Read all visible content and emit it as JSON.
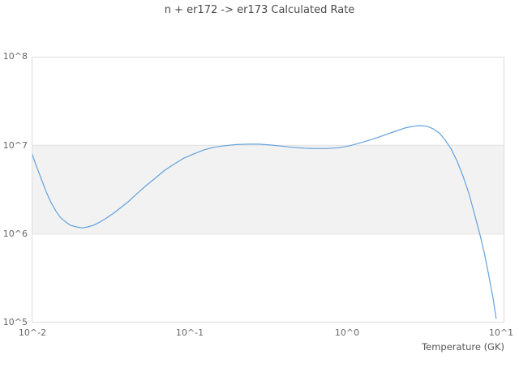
{
  "chart": {
    "title": "n + er172 -> er173 Calculated Rate",
    "x_axis_title": "Temperature (GK)",
    "y_ticks": [
      "10^8",
      "10^7",
      "10^6",
      "10^5"
    ],
    "x_ticks": [
      "10^-2",
      "10^-1",
      "10^0",
      "10^1"
    ]
  },
  "colors": {
    "line": "#64a2dc",
    "band": "#f2f2f2",
    "band_edge": "#e2e2e2",
    "border": "#dcdcdc",
    "tick_text": "#666666",
    "title_text": "#4a4a4a"
  },
  "chart_data": {
    "type": "line",
    "title": "n + er172 -> er173 Calculated Rate",
    "xlabel": "Temperature (GK)",
    "ylabel": "",
    "x_scale": "log",
    "y_scale": "log",
    "xlim": [
      0.01,
      10
    ],
    "ylim": [
      100000.0,
      100000000.0
    ],
    "x_tick_labels": [
      "10^-2",
      "10^-1",
      "10^0",
      "10^1"
    ],
    "y_tick_labels": [
      "10^5",
      "10^6",
      "10^7",
      "10^8"
    ],
    "legend": "none",
    "grid": "shaded horizontal band between 1e6 and 1e7",
    "series": [
      {
        "name": "calculated rate",
        "points": [
          [
            0.01,
            8300000.0
          ],
          [
            0.0107,
            5900000.0
          ],
          [
            0.0115,
            4200000.0
          ],
          [
            0.0124,
            2950000.0
          ],
          [
            0.0133,
            2250000.0
          ],
          [
            0.0143,
            1800000.0
          ],
          [
            0.0153,
            1520000.0
          ],
          [
            0.0165,
            1360000.0
          ],
          [
            0.0177,
            1250000.0
          ],
          [
            0.0192,
            1200000.0
          ],
          [
            0.0209,
            1170000.0
          ],
          [
            0.0227,
            1200000.0
          ],
          [
            0.0246,
            1250000.0
          ],
          [
            0.0271,
            1360000.0
          ],
          [
            0.0298,
            1510000.0
          ],
          [
            0.0332,
            1720000.0
          ],
          [
            0.0369,
            1990000.0
          ],
          [
            0.0415,
            2350000.0
          ],
          [
            0.0466,
            2850000.0
          ],
          [
            0.0533,
            3510000.0
          ],
          [
            0.0608,
            4250000.0
          ],
          [
            0.07,
            5240000.0
          ],
          [
            0.081,
            6200000.0
          ],
          [
            0.093,
            7200000.0
          ],
          [
            0.107,
            8000000.0
          ],
          [
            0.124,
            8900000.0
          ],
          [
            0.143,
            9500000.0
          ],
          [
            0.168,
            9900000.0
          ],
          [
            0.198,
            10200000.0
          ],
          [
            0.234,
            10300000.0
          ],
          [
            0.277,
            10300000.0
          ],
          [
            0.326,
            10100000.0
          ],
          [
            0.385,
            9800000.0
          ],
          [
            0.455,
            9500000.0
          ],
          [
            0.537,
            9300000.0
          ],
          [
            0.634,
            9200000.0
          ],
          [
            0.749,
            9200000.0
          ],
          [
            0.884,
            9400000.0
          ],
          [
            1.045,
            9900000.0
          ],
          [
            1.23,
            10700000.0
          ],
          [
            1.45,
            11700000.0
          ],
          [
            1.72,
            13000000.0
          ],
          [
            2.03,
            14400000.0
          ],
          [
            2.34,
            15700000.0
          ],
          [
            2.64,
            16400000.0
          ],
          [
            2.92,
            16700000.0
          ],
          [
            3.22,
            16400000.0
          ],
          [
            3.52,
            15400000.0
          ],
          [
            3.86,
            13800000.0
          ],
          [
            4.22,
            11400000.0
          ],
          [
            4.59,
            9100000.0
          ],
          [
            5.02,
            6600000.0
          ],
          [
            5.46,
            4500000.0
          ],
          [
            5.96,
            2850000.0
          ],
          [
            6.46,
            1680000.0
          ],
          [
            6.97,
            1010000.0
          ],
          [
            7.47,
            600000.0
          ],
          [
            7.98,
            330000.0
          ],
          [
            8.46,
            192000.0
          ],
          [
            8.86,
            111000.0
          ]
        ]
      }
    ]
  }
}
